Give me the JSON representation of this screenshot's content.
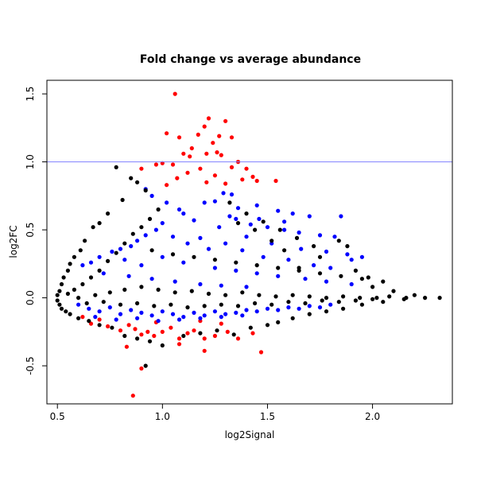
{
  "chart_data": {
    "type": "scatter",
    "title": "Fold change vs average abundance",
    "xlabel": "log2Signal",
    "ylabel": "log2FC",
    "xlim": [
      0.45,
      2.38
    ],
    "ylim": [
      -0.78,
      1.6
    ],
    "x_ticks": [
      0.5,
      1.0,
      1.5,
      2.0
    ],
    "x_tick_labels": [
      "0.5",
      "1.0",
      "1.5",
      "2.0"
    ],
    "y_ticks": [
      -0.5,
      0.0,
      0.5,
      1.0,
      1.5
    ],
    "y_tick_labels": [
      "-0.5",
      "0.0",
      "0.5",
      "1.0",
      "1.5"
    ],
    "reference_line": {
      "y": 1.0,
      "color": "#7f7fff"
    },
    "grid": false,
    "colors": {
      "not_significant": "#000000",
      "significant": "#0000ff",
      "large_change": "#ff0000"
    },
    "series": [
      {
        "color": "#ff0000",
        "points": [
          [
            1.06,
            1.5
          ],
          [
            1.22,
            1.32
          ],
          [
            1.3,
            1.3
          ],
          [
            1.2,
            1.26
          ],
          [
            1.02,
            1.21
          ],
          [
            1.17,
            1.2
          ],
          [
            1.27,
            1.19
          ],
          [
            1.33,
            1.18
          ],
          [
            1.08,
            1.18
          ],
          [
            1.24,
            1.14
          ],
          [
            1.14,
            1.1
          ],
          [
            1.26,
            1.07
          ],
          [
            1.21,
            1.06
          ],
          [
            1.1,
            1.06
          ],
          [
            1.13,
            1.04
          ],
          [
            1.28,
            1.05
          ],
          [
            1.36,
            1.0
          ],
          [
            1.05,
            0.98
          ],
          [
            1.0,
            0.99
          ],
          [
            0.97,
            0.98
          ],
          [
            1.33,
            0.96
          ],
          [
            1.18,
            0.95
          ],
          [
            1.4,
            0.95
          ],
          [
            1.12,
            0.92
          ],
          [
            1.25,
            0.9
          ],
          [
            1.43,
            0.89
          ],
          [
            1.07,
            0.88
          ],
          [
            1.38,
            0.87
          ],
          [
            1.45,
            0.86
          ],
          [
            1.54,
            0.86
          ],
          [
            1.21,
            0.85
          ],
          [
            1.3,
            0.84
          ],
          [
            1.02,
            0.83
          ],
          [
            0.9,
            0.95
          ],
          [
            0.62,
            -0.14
          ],
          [
            0.66,
            -0.19
          ],
          [
            0.74,
            -0.21
          ],
          [
            0.8,
            -0.24
          ],
          [
            0.84,
            -0.2
          ],
          [
            0.87,
            -0.23
          ],
          [
            0.9,
            -0.27
          ],
          [
            0.93,
            -0.25
          ],
          [
            0.96,
            -0.28
          ],
          [
            1.0,
            -0.25
          ],
          [
            1.04,
            -0.22
          ],
          [
            1.08,
            -0.3
          ],
          [
            1.12,
            -0.26
          ],
          [
            1.15,
            -0.24
          ],
          [
            1.2,
            -0.3
          ],
          [
            1.25,
            -0.28
          ],
          [
            1.31,
            -0.25
          ],
          [
            1.36,
            -0.3
          ],
          [
            1.43,
            -0.26
          ],
          [
            0.83,
            -0.36
          ],
          [
            1.08,
            -0.34
          ],
          [
            1.2,
            -0.39
          ],
          [
            1.47,
            -0.4
          ],
          [
            0.9,
            -0.52
          ],
          [
            0.86,
            -0.72
          ],
          [
            0.97,
            -0.18
          ],
          [
            1.18,
            -0.17
          ],
          [
            1.28,
            -0.19
          ],
          [
            0.7,
            -0.16
          ]
        ]
      },
      {
        "color": "#0000ff",
        "points": [
          [
            1.29,
            0.77
          ],
          [
            1.33,
            0.76
          ],
          [
            1.2,
            0.7
          ],
          [
            1.25,
            0.71
          ],
          [
            1.45,
            0.68
          ],
          [
            1.55,
            0.64
          ],
          [
            1.62,
            0.62
          ],
          [
            1.7,
            0.6
          ],
          [
            1.85,
            0.6
          ],
          [
            1.35,
            0.58
          ],
          [
            1.42,
            0.54
          ],
          [
            1.5,
            0.52
          ],
          [
            1.58,
            0.5
          ],
          [
            1.65,
            0.48
          ],
          [
            1.75,
            0.46
          ],
          [
            1.82,
            0.45
          ],
          [
            1.95,
            0.3
          ],
          [
            1.9,
            0.28
          ],
          [
            1.1,
            0.62
          ],
          [
            1.15,
            0.57
          ],
          [
            1.0,
            0.55
          ],
          [
            0.97,
            0.5
          ],
          [
            0.92,
            0.46
          ],
          [
            0.88,
            0.42
          ],
          [
            0.85,
            0.38
          ],
          [
            0.8,
            0.36
          ],
          [
            0.76,
            0.34
          ],
          [
            1.05,
            0.45
          ],
          [
            1.12,
            0.4
          ],
          [
            1.18,
            0.44
          ],
          [
            1.22,
            0.36
          ],
          [
            1.3,
            0.4
          ],
          [
            1.38,
            0.35
          ],
          [
            1.48,
            0.3
          ],
          [
            1.6,
            0.28
          ],
          [
            1.72,
            0.24
          ],
          [
            1.8,
            0.22
          ],
          [
            0.95,
            0.75
          ],
          [
            0.92,
            0.8
          ],
          [
            1.02,
            0.7
          ],
          [
            1.08,
            0.65
          ],
          [
            0.7,
            0.3
          ],
          [
            0.66,
            0.26
          ],
          [
            0.62,
            0.24
          ],
          [
            1.4,
            0.45
          ],
          [
            1.52,
            0.4
          ],
          [
            1.66,
            0.36
          ],
          [
            1.78,
            0.34
          ],
          [
            1.88,
            0.32
          ],
          [
            0.82,
            0.28
          ],
          [
            0.9,
            0.24
          ],
          [
            1.0,
            0.3
          ],
          [
            1.1,
            0.26
          ],
          [
            1.25,
            0.22
          ],
          [
            1.35,
            0.2
          ],
          [
            1.45,
            0.18
          ],
          [
            1.55,
            0.16
          ],
          [
            1.68,
            0.14
          ],
          [
            1.78,
            0.12
          ],
          [
            1.9,
            0.1
          ],
          [
            0.72,
            0.18
          ],
          [
            0.84,
            0.16
          ],
          [
            0.95,
            0.14
          ],
          [
            1.06,
            0.12
          ],
          [
            1.18,
            0.1
          ],
          [
            1.28,
            0.09
          ],
          [
            1.4,
            0.08
          ],
          [
            0.6,
            -0.05
          ],
          [
            0.65,
            -0.08
          ],
          [
            0.7,
            -0.1
          ],
          [
            0.75,
            -0.07
          ],
          [
            0.8,
            -0.12
          ],
          [
            0.85,
            -0.09
          ],
          [
            0.9,
            -0.11
          ],
          [
            0.95,
            -0.13
          ],
          [
            1.0,
            -0.1
          ],
          [
            1.05,
            -0.12
          ],
          [
            1.1,
            -0.14
          ],
          [
            1.15,
            -0.11
          ],
          [
            1.2,
            -0.13
          ],
          [
            1.25,
            -0.1
          ],
          [
            1.3,
            -0.12
          ],
          [
            1.35,
            -0.11
          ],
          [
            1.4,
            -0.09
          ],
          [
            1.45,
            -0.1
          ],
          [
            1.5,
            -0.08
          ],
          [
            1.55,
            -0.09
          ],
          [
            1.6,
            -0.07
          ],
          [
            1.65,
            -0.08
          ],
          [
            1.7,
            -0.06
          ],
          [
            1.75,
            -0.07
          ],
          [
            1.8,
            -0.05
          ],
          [
            0.68,
            -0.14
          ],
          [
            0.78,
            -0.16
          ],
          [
            0.88,
            -0.15
          ],
          [
            0.98,
            -0.17
          ],
          [
            1.08,
            -0.16
          ],
          [
            1.18,
            -0.15
          ],
          [
            1.28,
            -0.14
          ],
          [
            1.38,
            -0.13
          ],
          [
            1.32,
            0.6
          ],
          [
            1.27,
            0.52
          ],
          [
            1.36,
            0.66
          ],
          [
            1.46,
            0.58
          ],
          [
            1.58,
            0.56
          ]
        ]
      },
      {
        "color": "#000000",
        "points": [
          [
            0.78,
            0.96
          ],
          [
            0.85,
            0.88
          ],
          [
            0.88,
            0.85
          ],
          [
            0.92,
            0.79
          ],
          [
            0.81,
            0.72
          ],
          [
            0.74,
            0.62
          ],
          [
            0.7,
            0.55
          ],
          [
            0.67,
            0.52
          ],
          [
            0.63,
            0.42
          ],
          [
            0.61,
            0.35
          ],
          [
            0.58,
            0.3
          ],
          [
            0.56,
            0.25
          ],
          [
            0.55,
            0.2
          ],
          [
            0.53,
            0.15
          ],
          [
            0.52,
            0.1
          ],
          [
            0.51,
            0.05
          ],
          [
            0.5,
            0.02
          ],
          [
            0.5,
            -0.02
          ],
          [
            0.51,
            -0.05
          ],
          [
            0.52,
            -0.08
          ],
          [
            0.54,
            -0.1
          ],
          [
            0.56,
            -0.12
          ],
          [
            0.6,
            -0.15
          ],
          [
            0.65,
            -0.17
          ],
          [
            0.7,
            -0.2
          ],
          [
            0.76,
            -0.22
          ],
          [
            0.82,
            -0.28
          ],
          [
            0.88,
            -0.3
          ],
          [
            0.94,
            -0.32
          ],
          [
            1.0,
            -0.35
          ],
          [
            0.92,
            -0.5
          ],
          [
            1.5,
            -0.2
          ],
          [
            1.55,
            -0.18
          ],
          [
            1.62,
            -0.15
          ],
          [
            1.7,
            -0.12
          ],
          [
            1.78,
            -0.1
          ],
          [
            1.86,
            -0.08
          ],
          [
            1.95,
            -0.05
          ],
          [
            2.05,
            -0.03
          ],
          [
            2.15,
            -0.01
          ],
          [
            2.25,
            0.0
          ],
          [
            2.32,
            0.0
          ],
          [
            2.2,
            0.02
          ],
          [
            2.1,
            0.05
          ],
          [
            2.0,
            0.08
          ],
          [
            1.98,
            0.15
          ],
          [
            1.92,
            0.2
          ],
          [
            1.88,
            0.38
          ],
          [
            1.84,
            0.42
          ],
          [
            1.75,
            0.3
          ],
          [
            1.65,
            0.22
          ],
          [
            1.58,
            0.35
          ],
          [
            1.52,
            0.42
          ],
          [
            1.44,
            0.5
          ],
          [
            1.36,
            0.55
          ],
          [
            0.98,
            0.65
          ],
          [
            0.94,
            0.58
          ],
          [
            0.9,
            0.52
          ],
          [
            0.86,
            0.47
          ],
          [
            0.82,
            0.4
          ],
          [
            0.78,
            0.33
          ],
          [
            0.74,
            0.27
          ],
          [
            0.7,
            0.2
          ],
          [
            0.66,
            0.15
          ],
          [
            0.62,
            0.1
          ],
          [
            0.58,
            0.06
          ],
          [
            0.55,
            0.03
          ],
          [
            0.6,
            0.0
          ],
          [
            0.68,
            0.02
          ],
          [
            0.75,
            0.04
          ],
          [
            0.82,
            0.06
          ],
          [
            0.9,
            0.08
          ],
          [
            0.98,
            0.06
          ],
          [
            1.06,
            0.04
          ],
          [
            1.14,
            0.05
          ],
          [
            1.22,
            0.03
          ],
          [
            1.3,
            0.02
          ],
          [
            1.38,
            0.04
          ],
          [
            1.46,
            0.02
          ],
          [
            1.54,
            0.01
          ],
          [
            1.62,
            0.02
          ],
          [
            1.7,
            0.01
          ],
          [
            1.78,
            0.0
          ],
          [
            1.86,
            0.01
          ],
          [
            1.94,
            0.0
          ],
          [
            2.02,
            0.0
          ],
          [
            0.64,
            -0.04
          ],
          [
            0.72,
            -0.03
          ],
          [
            0.8,
            -0.05
          ],
          [
            0.88,
            -0.04
          ],
          [
            0.96,
            -0.06
          ],
          [
            1.04,
            -0.05
          ],
          [
            1.12,
            -0.07
          ],
          [
            1.2,
            -0.06
          ],
          [
            1.28,
            -0.05
          ],
          [
            1.36,
            -0.06
          ],
          [
            1.44,
            -0.04
          ],
          [
            1.52,
            -0.05
          ],
          [
            1.6,
            -0.03
          ],
          [
            1.68,
            -0.04
          ],
          [
            1.76,
            -0.02
          ],
          [
            1.84,
            -0.03
          ],
          [
            1.92,
            -0.02
          ],
          [
            2.0,
            -0.01
          ],
          [
            2.08,
            0.01
          ],
          [
            2.16,
            0.0
          ],
          [
            1.1,
            -0.28
          ],
          [
            1.18,
            -0.26
          ],
          [
            1.26,
            -0.24
          ],
          [
            1.34,
            -0.27
          ],
          [
            1.42,
            -0.22
          ],
          [
            0.95,
            0.35
          ],
          [
            1.05,
            0.32
          ],
          [
            1.15,
            0.3
          ],
          [
            1.25,
            0.28
          ],
          [
            1.35,
            0.26
          ],
          [
            1.45,
            0.24
          ],
          [
            1.55,
            0.22
          ],
          [
            1.65,
            0.2
          ],
          [
            1.75,
            0.18
          ],
          [
            1.85,
            0.16
          ],
          [
            1.95,
            0.14
          ],
          [
            2.05,
            0.12
          ],
          [
            1.32,
            0.7
          ],
          [
            1.4,
            0.62
          ],
          [
            1.48,
            0.56
          ],
          [
            1.56,
            0.5
          ],
          [
            1.64,
            0.44
          ],
          [
            1.72,
            0.38
          ]
        ]
      }
    ]
  }
}
